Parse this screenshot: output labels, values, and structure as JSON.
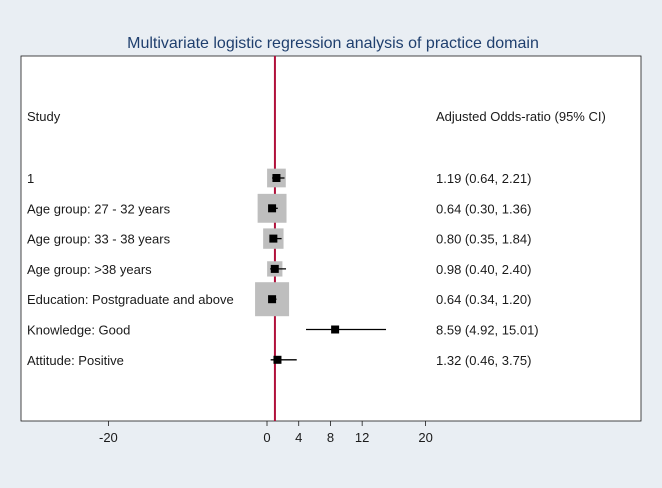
{
  "chart_data": {
    "type": "forest",
    "title": "Multivariate logistic regression analysis of practice domain",
    "header_left": "Study",
    "header_right": "Adjusted Odds-ratio (95% CI)",
    "null_line": 1,
    "xlim": [
      -24.5,
      24.5
    ],
    "xticks": [
      -20,
      0,
      4,
      8,
      12,
      20
    ],
    "colors": {
      "null_line": "#b0103a",
      "box": "#bebebe",
      "marker": "#000000",
      "title": "#1f3f6e",
      "background": "#e9eef3",
      "panel": "#ffffff"
    },
    "rows": [
      {
        "label": "1",
        "or": 1.19,
        "lo": 0.64,
        "hi": 2.21,
        "ci_text": "1.19 (0.64, 2.21)",
        "weight": 0.55
      },
      {
        "label": "Age group: 27 - 32 years",
        "or": 0.64,
        "lo": 0.3,
        "hi": 1.36,
        "ci_text": "0.64 (0.30, 1.36)",
        "weight": 0.85
      },
      {
        "label": "Age group: 33 - 38 years",
        "or": 0.8,
        "lo": 0.35,
        "hi": 1.84,
        "ci_text": "0.80 (0.35, 1.84)",
        "weight": 0.6
      },
      {
        "label": "Age group: >38 years",
        "or": 0.98,
        "lo": 0.4,
        "hi": 2.4,
        "ci_text": "0.98 (0.40, 2.40)",
        "weight": 0.45
      },
      {
        "label": "Education: Postgraduate and above",
        "or": 0.64,
        "lo": 0.34,
        "hi": 1.2,
        "ci_text": "0.64 (0.34, 1.20)",
        "weight": 1.0
      },
      {
        "label": "Knowledge: Good",
        "or": 8.59,
        "lo": 4.92,
        "hi": 15.01,
        "ci_text": "8.59 (4.92, 15.01)",
        "weight": 0
      },
      {
        "label": "Attitude: Positive",
        "or": 1.32,
        "lo": 0.46,
        "hi": 3.75,
        "ci_text": "1.32 (0.46, 3.75)",
        "weight": 0
      }
    ]
  }
}
